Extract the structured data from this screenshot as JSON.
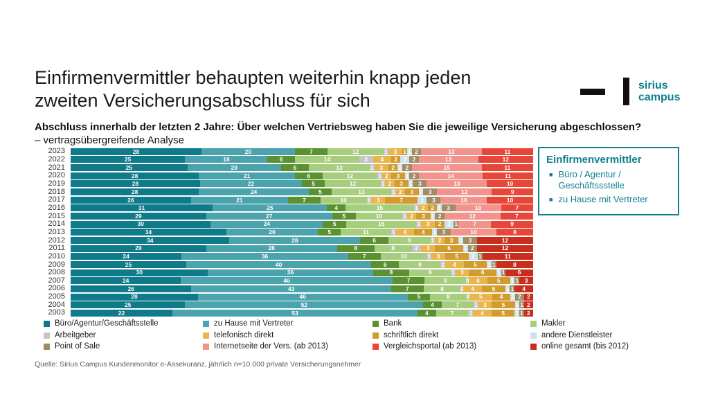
{
  "slide": {
    "title": "Einfirmenvermittler behaupten weiterhin knapp jeden zweiten Versicherungsabschluss für sich",
    "subtitle_bold": "Abschluss innerhalb der letzten 2 Jahre: Über welchen Vertriebsweg haben Sie die jeweilige Versicherung abgeschlossen?",
    "subtitle_regular": " – vertragsübergreifende Analyse",
    "source": "Quelle: Sirius Campus Kundenmonitor e-Assekuranz, jährlich n=10.000 private Versicherungsnehmer"
  },
  "logo": {
    "line1": "sirius",
    "line2": "campus",
    "text_color": "#0e7f8e"
  },
  "callout": {
    "title": "Einfirmenvermittler",
    "items": [
      "Büro / Agentur / Geschäftssstelle",
      "zu Hause mit Vertreter"
    ],
    "border_color": "#0e7f8e"
  },
  "chart_data": {
    "type": "bar",
    "orientation": "horizontal",
    "stacked": true,
    "unit": "percent",
    "xlim": [
      0,
      100
    ],
    "value_labels": true,
    "legend_position": "bottom",
    "categories": [
      2023,
      2022,
      2021,
      2020,
      2019,
      2018,
      2017,
      2016,
      2015,
      2014,
      2013,
      2012,
      2011,
      2010,
      2009,
      2008,
      2007,
      2006,
      2005,
      2004,
      2003
    ],
    "series": [
      {
        "name": "Büro/Agentur/Geschäftsstelle",
        "color": "#0f7a89",
        "values": [
          28,
          25,
          25,
          28,
          28,
          28,
          26,
          31,
          29,
          30,
          34,
          34,
          29,
          24,
          25,
          30,
          24,
          26,
          28,
          25,
          22
        ]
      },
      {
        "name": "zu Hause mit Vertreter",
        "color": "#4ba3ad",
        "values": [
          20,
          18,
          20,
          21,
          22,
          24,
          21,
          25,
          27,
          24,
          20,
          28,
          28,
          36,
          40,
          36,
          46,
          43,
          46,
          52,
          53
        ]
      },
      {
        "name": "Bank",
        "color": "#5a9230",
        "values": [
          7,
          6,
          6,
          6,
          5,
          5,
          7,
          4,
          5,
          5,
          5,
          6,
          8,
          7,
          6,
          8,
          7,
          7,
          5,
          4,
          4
        ]
      },
      {
        "name": "Makler",
        "color": "#a6ce7c",
        "values": [
          12,
          14,
          13,
          12,
          12,
          13,
          10,
          15,
          10,
          15,
          11,
          9,
          8,
          10,
          9,
          9,
          9,
          8,
          8,
          7,
          7
        ]
      },
      {
        "name": "Arbeitgeber",
        "color": "#c6c6c6",
        "values": [
          1,
          3,
          1,
          1,
          1,
          1,
          1,
          1,
          1,
          1,
          1,
          1,
          2,
          1,
          1,
          1,
          0,
          0,
          0,
          1,
          1
        ]
      },
      {
        "name": "telefonisch direkt",
        "color": "#e9b64d",
        "values": [
          3,
          4,
          3,
          2,
          2,
          2,
          3,
          2,
          2,
          3,
          4,
          2,
          3,
          3,
          4,
          3,
          4,
          4,
          5,
          3,
          4
        ]
      },
      {
        "name": "schriftlich direkt",
        "color": "#d39a2d",
        "values": [
          1,
          2,
          2,
          3,
          3,
          3,
          7,
          2,
          3,
          2,
          4,
          3,
          6,
          5,
          5,
          6,
          5,
          5,
          4,
          5,
          5
        ]
      },
      {
        "name": "andere Dienstleister",
        "color": "#cde3ea",
        "values": [
          1,
          2,
          1,
          1,
          1,
          1,
          2,
          1,
          1,
          2,
          1,
          1,
          1,
          2,
          1,
          1,
          1,
          1,
          1,
          1,
          1
        ]
      },
      {
        "name": "Point of Sale",
        "color": "#a18c64",
        "values": [
          2,
          2,
          2,
          2,
          3,
          3,
          3,
          3,
          2,
          1,
          3,
          3,
          2,
          1,
          1,
          1,
          1,
          1,
          2,
          1,
          1
        ]
      },
      {
        "name": "Internetseite der Vers. (ab 2013)",
        "color": "#f2938c",
        "values": [
          13,
          13,
          15,
          14,
          13,
          12,
          10,
          10,
          12,
          7,
          10,
          0,
          0,
          0,
          0,
          0,
          0,
          0,
          0,
          0,
          0
        ]
      },
      {
        "name": "Vergleichsportal (ab 2013)",
        "color": "#e84638",
        "values": [
          11,
          12,
          11,
          11,
          10,
          9,
          10,
          7,
          7,
          9,
          8,
          0,
          0,
          0,
          0,
          0,
          0,
          0,
          0,
          0,
          0
        ]
      },
      {
        "name": "online gesamt (bis 2012)",
        "color": "#c92e1d",
        "values": [
          0,
          0,
          0,
          0,
          0,
          0,
          0,
          0,
          0,
          0,
          0,
          12,
          12,
          11,
          8,
          6,
          3,
          4,
          2,
          2,
          2
        ]
      }
    ]
  }
}
